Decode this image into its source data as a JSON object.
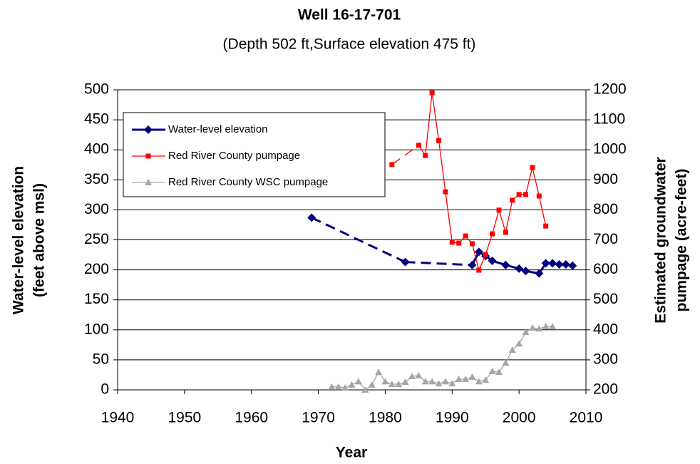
{
  "chart_data": {
    "type": "line",
    "title": "Well 16-17-701",
    "subtitle": "(Depth 502 ft,Surface elevation 475 ft)",
    "xlabel": "Year",
    "ylabel": [
      "Water-level elevation",
      "(feet above msl)"
    ],
    "y2label": [
      "Estimated groundwater",
      "pumpage (acre-feet)"
    ],
    "xlim": [
      1940,
      2010
    ],
    "xticks": [
      1940,
      1950,
      1960,
      1970,
      1980,
      1990,
      2000,
      2010
    ],
    "ylim": [
      0,
      500
    ],
    "yticks": [
      0,
      50,
      100,
      150,
      200,
      250,
      300,
      350,
      400,
      450,
      500
    ],
    "y2lim": [
      200,
      1200
    ],
    "y2ticks": [
      200,
      300,
      400,
      500,
      600,
      700,
      800,
      900,
      1000,
      1100,
      1200
    ],
    "grid": true,
    "series": [
      {
        "name": "Water-level elevation",
        "color": "#000080",
        "marker": "diamond",
        "x": [
          1969,
          1983,
          1993,
          1994,
          1995,
          1996,
          1998,
          2000,
          2001,
          2003,
          2004,
          2005,
          2006,
          2007,
          2008
        ],
        "values": [
          287,
          213,
          208,
          230,
          223,
          215,
          208,
          202,
          198,
          194,
          211,
          211,
          209,
          209,
          207
        ]
      },
      {
        "name": "Red River County pumpage",
        "color": "#ff0000",
        "marker": "square",
        "axis": "y2",
        "x": [
          1981,
          1985,
          1986,
          1987,
          1988,
          1989,
          1990,
          1991,
          1992,
          1993,
          1994,
          1995,
          1996,
          1997,
          1998,
          1999,
          2000,
          2001,
          2002,
          2003,
          2004
        ],
        "values": [
          951,
          1015,
          981,
          1190,
          1031,
          860,
          692,
          689,
          713,
          687,
          599,
          651,
          720,
          799,
          725,
          832,
          851,
          851,
          941,
          846,
          746
        ]
      },
      {
        "name": "Red River County WSC pumpage",
        "color": "#a6a6a6",
        "marker": "triangle",
        "axis": "y2",
        "x": [
          1972,
          1973,
          1974,
          1975,
          1976,
          1977,
          1978,
          1979,
          1980,
          1981,
          1982,
          1983,
          1984,
          1985,
          1986,
          1987,
          1988,
          1989,
          1990,
          1991,
          1992,
          1993,
          1994,
          1995,
          1996,
          1997,
          1998,
          1999,
          2000,
          2001,
          2002,
          2003,
          2004,
          2005
        ],
        "values": [
          210,
          210,
          207,
          217,
          228,
          200,
          217,
          259,
          228,
          219,
          219,
          226,
          245,
          248,
          228,
          228,
          221,
          228,
          221,
          236,
          236,
          243,
          228,
          233,
          262,
          259,
          290,
          333,
          354,
          392,
          407,
          404,
          411,
          411
        ]
      }
    ]
  }
}
